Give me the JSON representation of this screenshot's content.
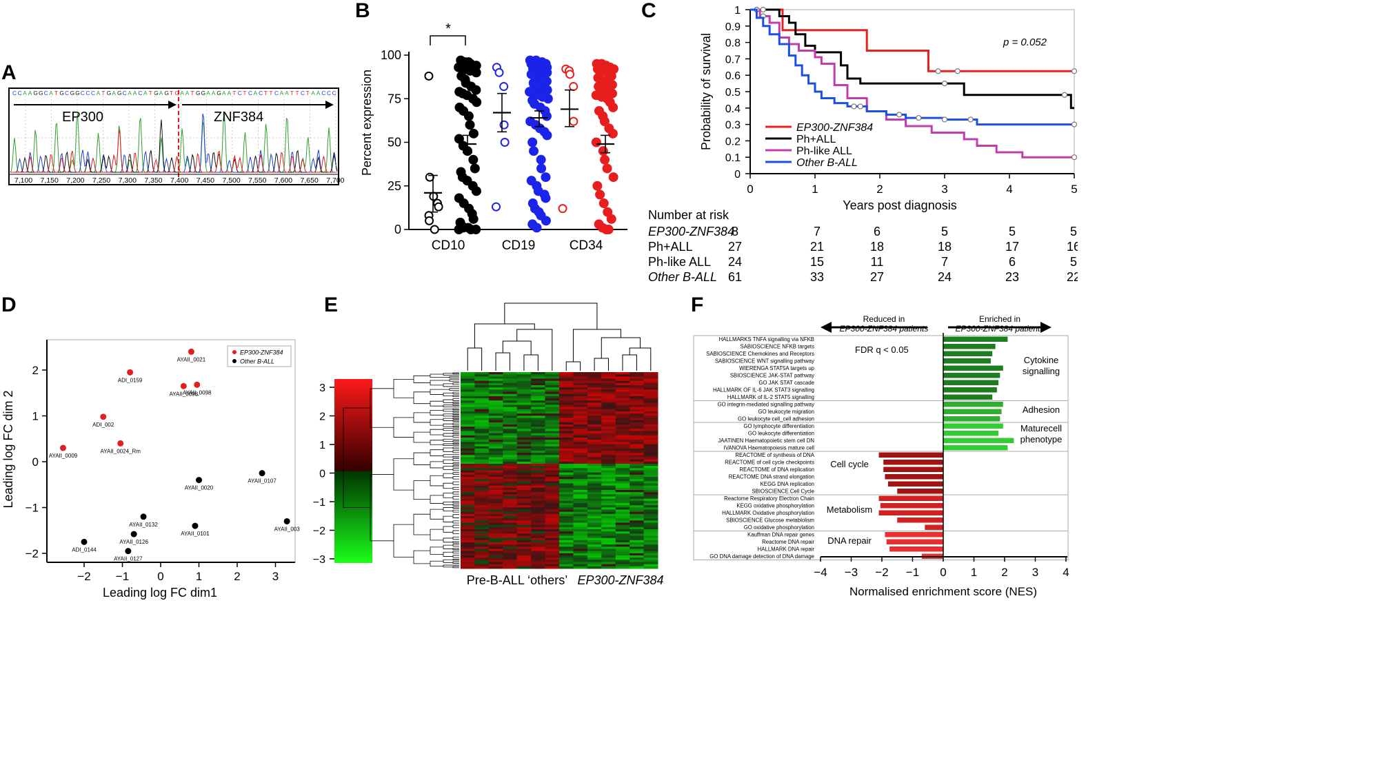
{
  "panels": {
    "A": "A",
    "B": "B",
    "C": "C",
    "D": "D",
    "E": "E",
    "F": "F"
  },
  "panel_a": {
    "sequence": "CCAAGGCATGCGGCCCATGAGCAACATGAGT",
    "sequence2": "AATGGAAGAATCTCACTTCAATTCTAACCC",
    "junction": "G",
    "left_gene": "EP300",
    "right_gene": "ZNF384",
    "positions": [
      "7,100",
      "7,150",
      "7,200",
      "7,250",
      "7,300",
      "7,350",
      "7,400",
      "7,450",
      "7,500",
      "7,550",
      "7,600",
      "7,650",
      "7,700"
    ],
    "colors": {
      "A": "#2ca02c",
      "C": "#1f3fd0",
      "G": "#111111",
      "T": "#e11919",
      "junction": "#e11919"
    }
  },
  "panel_b": {
    "ylabel": "Percent expression",
    "yticks": [
      "0",
      "25",
      "50",
      "75",
      "100"
    ],
    "categories": [
      "CD10",
      "CD19",
      "CD34"
    ],
    "significance": "*"
  },
  "panel_c": {
    "ylabel": "Probability of survival",
    "xlabel": "Years post diagnosis",
    "yticks": [
      "0",
      "0.1",
      "0.2",
      "0.3",
      "0.4",
      "0.5",
      "0.6",
      "0.7",
      "0.8",
      "0.9",
      "1"
    ],
    "xticks": [
      "0",
      "1",
      "2",
      "3",
      "4",
      "5"
    ],
    "pvalue": "p = 0.052",
    "legend": [
      {
        "label": "EP300-ZNF384",
        "color": "#e82020",
        "italic": true
      },
      {
        "label": "Ph+ALL",
        "color": "#000000",
        "italic": false
      },
      {
        "label": "Ph-like ALL",
        "color": "#c23cab",
        "italic": false
      },
      {
        "label": "Other B-ALL",
        "color": "#1b4fe6",
        "italic": true
      }
    ],
    "risk_title": "Number at risk",
    "risk_table": [
      {
        "label": "EP300-ZNF384",
        "italic": true,
        "values": [
          "8",
          "7",
          "6",
          "5",
          "5",
          "5"
        ]
      },
      {
        "label": "Ph+ALL",
        "italic": false,
        "values": [
          "27",
          "21",
          "18",
          "18",
          "17",
          "16"
        ]
      },
      {
        "label": "Ph-like ALL",
        "italic": false,
        "values": [
          "24",
          "15",
          "11",
          "7",
          "6",
          "5"
        ]
      },
      {
        "label": "Other B-ALL",
        "italic": true,
        "values": [
          "61",
          "33",
          "27",
          "24",
          "23",
          "22"
        ]
      }
    ]
  },
  "panel_d": {
    "xlabel": "Leading log FC dim1",
    "ylabel": "Leading log FC dim 2",
    "xticks": [
      "−2",
      "−1",
      "0",
      "1",
      "2",
      "3"
    ],
    "yticks": [
      "−2",
      "−1",
      "0",
      "1",
      "2"
    ],
    "legend": [
      {
        "label": "EP300-ZNF384",
        "color": "#e02020"
      },
      {
        "label": "Other B-ALL",
        "color": "#000000"
      }
    ],
    "point_labels": [
      "AYAII_0021",
      "ADI_0159",
      "AYAII_0098",
      "AYAII_0098",
      "ADI_002",
      "AYAII_0009",
      "AYAII_0024_Rm",
      "AYAII_0107",
      "AYAII_0020",
      "AYAII_0132",
      "AYAII_0101",
      "AYAII_003",
      "AYAII_0126",
      "ADI_0144",
      "AYAII_0127"
    ]
  },
  "panel_e": {
    "colorbar_ticks": [
      "3",
      "2",
      "1",
      "0",
      "−1",
      "−2",
      "−3"
    ],
    "xlabel_left": "Pre-B-ALL ‘others’",
    "xlabel_right": "EP300-ZNF384"
  },
  "panel_f": {
    "header_left_1": "Reduced in",
    "header_left_2": "EP300-ZNF384 patients",
    "header_right_1": "Enriched in",
    "header_right_2": "EP300-ZNF384 patients",
    "fdr": "FDR q < 0.05",
    "xlabel": "Normalised enrichment score (NES)",
    "xticks": [
      "−4",
      "−3",
      "−2",
      "−1",
      "0",
      "1",
      "2",
      "3",
      "4"
    ],
    "groups": [
      "Cytokine",
      "signalling",
      "Adhesion",
      "Maturecell",
      "phenotype",
      "Cell cycle",
      "Metabolism",
      "DNA repair"
    ],
    "pathways": [
      {
        "label": "HALLMARKS TNFA signalling via NFKB",
        "nes": 2.1
      },
      {
        "label": "SABIOSCIENCE NFKB targets",
        "nes": 1.7
      },
      {
        "label": "SABIOSCIENCE Chemokines and Receptors",
        "nes": 1.6
      },
      {
        "label": "SABIOSCIENCE WNT signalling pathway",
        "nes": 1.55
      },
      {
        "label": "WIERENGA STAT5A targets up",
        "nes": 1.95
      },
      {
        "label": "SBIOSCIENCE JAK-STAT pathway",
        "nes": 1.85
      },
      {
        "label": "GO JAK STAT cascade",
        "nes": 1.8
      },
      {
        "label": "HALLMARK OF IL-6 JAK STAT3 signalling",
        "nes": 1.75
      },
      {
        "label": "HALLMARK of IL-2 STAT5 signalling",
        "nes": 1.6
      },
      {
        "label": "GO integrin-mediated signalling pathway",
        "nes": 1.95
      },
      {
        "label": "GO leukocyte migration",
        "nes": 1.9
      },
      {
        "label": "GO leukocyte cell_cell adhesion",
        "nes": 1.85
      },
      {
        "label": "GO lymphocyte differentiation",
        "nes": 1.95
      },
      {
        "label": "GO leukocyte differentiation",
        "nes": 1.8
      },
      {
        "label": "JAATINEN Haematopoietic stem cell DN",
        "nes": 2.3
      },
      {
        "label": "IVANOVA Haematopoiesis mature cell",
        "nes": 2.1
      },
      {
        "label": "REACTOME of synthesis of DNA",
        "nes": -2.1
      },
      {
        "label": "REACTOME of cell cycle checkpoints",
        "nes": -1.95
      },
      {
        "label": "REACTOME of DNA replication",
        "nes": -1.95
      },
      {
        "label": "REACTOME DNA strand elongation",
        "nes": -1.9
      },
      {
        "label": "KEGG DNA replication",
        "nes": -1.8
      },
      {
        "label": "SBIOSCIENCE Cell Cycle",
        "nes": -1.5
      },
      {
        "label": "Reactome Respiratory Electron Chain",
        "nes": -2.1
      },
      {
        "label": "KEGG oxidative phosphorylation",
        "nes": -2.05
      },
      {
        "label": "HALLMARK Oxidative phosphorylation",
        "nes": -2.1
      },
      {
        "label": "SBIOSCIENCE Glucose metablolism",
        "nes": -1.5
      },
      {
        "label": "GO oxidative phosphorylation",
        "nes": -0.6
      },
      {
        "label": "Kauffman DNA repair genes",
        "nes": -1.9
      },
      {
        "label": "Reactome DNA repair",
        "nes": -1.85
      },
      {
        "label": "HALLMARK DNA repair",
        "nes": -1.75
      },
      {
        "label": "GO DNA damage detection of DNA damage",
        "nes": -0.7
      }
    ]
  },
  "chart_data": [
    {
      "type": "scatter",
      "title": "B",
      "ylabel": "Percent expression",
      "categories": [
        "CD10",
        "CD19",
        "CD34"
      ],
      "ylim": [
        0,
        100
      ],
      "groups": [
        {
          "name": "CD10 EP300-ZNF384",
          "filled": false,
          "color": "#000000",
          "mean": 21,
          "err": [
            10,
            31
          ],
          "values": [
            88,
            30,
            19,
            15,
            13,
            8,
            5,
            0
          ]
        },
        {
          "name": "CD10 others",
          "filled": true,
          "color": "#000000",
          "mean": 49,
          "err": [
            44,
            54
          ],
          "values": [
            97,
            96,
            96,
            95,
            94,
            93,
            92,
            92,
            91,
            90,
            88,
            86,
            84,
            82,
            80,
            79,
            78,
            77,
            75,
            73,
            70,
            68,
            65,
            60,
            55,
            52,
            48,
            45,
            40,
            35,
            33,
            30,
            28,
            25,
            22,
            18,
            15,
            12,
            9,
            6,
            4,
            2,
            1,
            0,
            0,
            0,
            1
          ]
        },
        {
          "name": "CD19 EP300-ZNF384",
          "filled": false,
          "color": "#1b24e8",
          "mean": 67,
          "err": [
            56,
            78
          ],
          "values": [
            93,
            90,
            82,
            60,
            50,
            13
          ]
        },
        {
          "name": "CD19 others",
          "filled": true,
          "color": "#1b24e8",
          "mean": 64,
          "err": [
            59,
            68
          ],
          "values": [
            97,
            97,
            96,
            96,
            95,
            95,
            94,
            94,
            93,
            93,
            92,
            92,
            91,
            90,
            90,
            89,
            88,
            87,
            86,
            85,
            84,
            83,
            82,
            81,
            80,
            79,
            78,
            77,
            76,
            75,
            74,
            72,
            70,
            68,
            65,
            62,
            60,
            58,
            56,
            54,
            50,
            45,
            40,
            35,
            30,
            28,
            25,
            22,
            20,
            18,
            15,
            12,
            10,
            8,
            5,
            3,
            1
          ]
        },
        {
          "name": "CD34 EP300-ZNF384",
          "filled": false,
          "color": "#e81e1e",
          "mean": 69,
          "err": [
            59,
            80
          ],
          "values": [
            92,
            91,
            89,
            82,
            62,
            12
          ]
        },
        {
          "name": "CD34 others",
          "filled": true,
          "color": "#e81e1e",
          "mean": 49,
          "err": [
            44,
            54
          ],
          "values": [
            95,
            95,
            94,
            93,
            92,
            92,
            91,
            90,
            89,
            88,
            87,
            86,
            85,
            84,
            83,
            82,
            81,
            80,
            79,
            78,
            77,
            76,
            75,
            73,
            70,
            68,
            65,
            62,
            58,
            55,
            50,
            45,
            40,
            35,
            30,
            25,
            20,
            15,
            10,
            6,
            3,
            1,
            0,
            0
          ]
        }
      ]
    },
    {
      "type": "line",
      "title": "C",
      "xlabel": "Years post diagnosis",
      "ylabel": "Probability of survival",
      "xlim": [
        0,
        5
      ],
      "ylim": [
        0,
        1
      ],
      "series": [
        {
          "name": "EP300-ZNF384",
          "color": "#e82020",
          "steps": [
            [
              0,
              1
            ],
            [
              0.5,
              0.875
            ],
            [
              1.8,
              0.75
            ],
            [
              2.75,
              0.625
            ],
            [
              5,
              0.625
            ]
          ],
          "censors": [
            [
              0.1,
              1
            ],
            [
              2.9,
              0.625
            ],
            [
              3.2,
              0.625
            ],
            [
              5,
              0.625
            ]
          ]
        },
        {
          "name": "Ph+ALL",
          "color": "#000000",
          "steps": [
            [
              0,
              1
            ],
            [
              0.45,
              0.96
            ],
            [
              0.6,
              0.92
            ],
            [
              0.7,
              0.85
            ],
            [
              0.85,
              0.78
            ],
            [
              1.0,
              0.74
            ],
            [
              1.4,
              0.66
            ],
            [
              1.5,
              0.58
            ],
            [
              1.7,
              0.55
            ],
            [
              3.3,
              0.48
            ],
            [
              4.95,
              0.4
            ],
            [
              5,
              0.4
            ]
          ],
          "censors": [
            [
              0.2,
              1
            ],
            [
              3.0,
              0.55
            ],
            [
              4.85,
              0.48
            ]
          ]
        },
        {
          "name": "Ph-like ALL",
          "color": "#c23cab",
          "steps": [
            [
              0,
              1
            ],
            [
              0.15,
              0.96
            ],
            [
              0.3,
              0.92
            ],
            [
              0.45,
              0.83
            ],
            [
              0.6,
              0.79
            ],
            [
              0.75,
              0.75
            ],
            [
              1.0,
              0.71
            ],
            [
              1.1,
              0.67
            ],
            [
              1.3,
              0.54
            ],
            [
              1.5,
              0.46
            ],
            [
              1.8,
              0.38
            ],
            [
              2.1,
              0.33
            ],
            [
              2.4,
              0.29
            ],
            [
              2.8,
              0.25
            ],
            [
              3.3,
              0.21
            ],
            [
              3.5,
              0.17
            ],
            [
              3.8,
              0.13
            ],
            [
              4.2,
              0.1
            ],
            [
              5,
              0.1
            ]
          ],
          "censors": [
            [
              0.1,
              1
            ],
            [
              0.2,
              0.96
            ],
            [
              5,
              0.1
            ]
          ]
        },
        {
          "name": "Other B-ALL",
          "color": "#1b4fe6",
          "steps": [
            [
              0,
              1
            ],
            [
              0.1,
              0.95
            ],
            [
              0.2,
              0.9
            ],
            [
              0.3,
              0.85
            ],
            [
              0.45,
              0.79
            ],
            [
              0.6,
              0.72
            ],
            [
              0.7,
              0.66
            ],
            [
              0.8,
              0.6
            ],
            [
              0.9,
              0.55
            ],
            [
              1.0,
              0.5
            ],
            [
              1.1,
              0.46
            ],
            [
              1.3,
              0.43
            ],
            [
              1.5,
              0.41
            ],
            [
              1.8,
              0.38
            ],
            [
              2.1,
              0.36
            ],
            [
              2.4,
              0.34
            ],
            [
              3.0,
              0.33
            ],
            [
              3.5,
              0.3
            ],
            [
              5,
              0.3
            ]
          ],
          "censors": [
            [
              1.6,
              0.41
            ],
            [
              1.7,
              0.41
            ],
            [
              2.3,
              0.36
            ],
            [
              2.6,
              0.34
            ],
            [
              3.0,
              0.33
            ],
            [
              3.4,
              0.33
            ],
            [
              5,
              0.3
            ]
          ]
        }
      ]
    },
    {
      "type": "scatter",
      "title": "D",
      "xlabel": "Leading log FC dim1",
      "ylabel": "Leading log FC dim 2",
      "xlim": [
        -3,
        3.5
      ],
      "ylim": [
        -2.3,
        2.6
      ],
      "points": [
        {
          "x": 0.8,
          "y": 2.4,
          "label": "AYAII_0021",
          "group": "EP300-ZNF384"
        },
        {
          "x": -0.8,
          "y": 1.95,
          "label": "ADI_0159",
          "group": "EP300-ZNF384"
        },
        {
          "x": 0.6,
          "y": 1.65,
          "label": "AYAII_0098",
          "group": "EP300-ZNF384"
        },
        {
          "x": 0.95,
          "y": 1.68,
          "label": "AYAII_0098",
          "group": "EP300-ZNF384"
        },
        {
          "x": -1.5,
          "y": 0.98,
          "label": "ADI_002",
          "group": "EP300-ZNF384"
        },
        {
          "x": -2.55,
          "y": 0.3,
          "label": "AYAII_0009",
          "group": "EP300-ZNF384"
        },
        {
          "x": -1.05,
          "y": 0.4,
          "label": "AYAII_0024_Rm",
          "group": "EP300-ZNF384"
        },
        {
          "x": 2.65,
          "y": -0.25,
          "label": "AYAII_0107",
          "group": "Other B-ALL"
        },
        {
          "x": 1.0,
          "y": -0.4,
          "label": "AYAII_0020",
          "group": "Other B-ALL"
        },
        {
          "x": -0.45,
          "y": -1.2,
          "label": "AYAII_0132",
          "group": "Other B-ALL"
        },
        {
          "x": 0.9,
          "y": -1.4,
          "label": "AYAII_0101",
          "group": "Other B-ALL"
        },
        {
          "x": 3.3,
          "y": -1.3,
          "label": "AYAII_003",
          "group": "Other B-ALL"
        },
        {
          "x": -0.7,
          "y": -1.58,
          "label": "AYAII_0126",
          "group": "Other B-ALL"
        },
        {
          "x": -2.0,
          "y": -1.75,
          "label": "ADI_0144",
          "group": "Other B-ALL"
        },
        {
          "x": -0.85,
          "y": -1.95,
          "label": "AYAII_0127",
          "group": "Other B-ALL"
        }
      ]
    },
    {
      "type": "heatmap",
      "title": "E",
      "colorbar_range": [
        -3,
        3
      ],
      "columns": [
        "Pre-B-ALL others",
        "EP300-ZNF384"
      ]
    },
    {
      "type": "bar",
      "title": "F",
      "orientation": "horizontal",
      "xlabel": "Normalised enrichment score (NES)",
      "xlim": [
        -4,
        4
      ]
    }
  ]
}
